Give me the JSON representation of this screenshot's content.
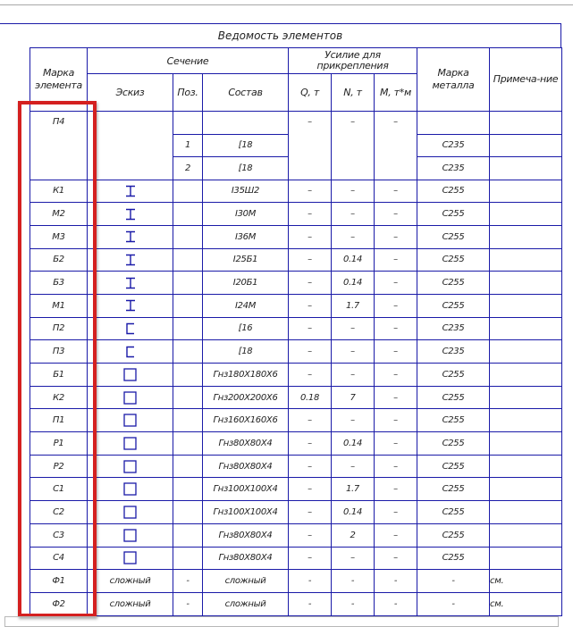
{
  "title": "Ведомость элементов",
  "headers": {
    "mark": "Марка элемента",
    "section": "Сечение",
    "sketch": "Эскиз",
    "pos": "Поз.",
    "composition": "Состав",
    "force": "Усилие для прикрепления",
    "q": "Q, т",
    "n": "N, т",
    "m": "М, т*м",
    "steel": "Марка металла",
    "note": "Примеча-ние"
  },
  "group": {
    "mark": "П4",
    "q": "–",
    "n": "–",
    "m": "–",
    "rows": [
      {
        "pos": "",
        "composition": "",
        "steel": ""
      },
      {
        "pos": "1",
        "composition": "[18",
        "steel": "С235"
      },
      {
        "pos": "2",
        "composition": "[18",
        "steel": "С235"
      }
    ]
  },
  "rows": [
    {
      "mark": "К1",
      "icon": "i-beam",
      "composition": "I35Ш2",
      "q": "–",
      "n": "–",
      "m": "–",
      "steel": "С255",
      "note": ""
    },
    {
      "mark": "М2",
      "icon": "i-beam",
      "composition": "I30М",
      "q": "–",
      "n": "–",
      "m": "–",
      "steel": "С255",
      "note": ""
    },
    {
      "mark": "М3",
      "icon": "i-beam",
      "composition": "I36М",
      "q": "–",
      "n": "–",
      "m": "–",
      "steel": "С255",
      "note": ""
    },
    {
      "mark": "Б2",
      "icon": "i-beam",
      "composition": "I25Б1",
      "q": "–",
      "n": "0.14",
      "m": "–",
      "steel": "С255",
      "note": ""
    },
    {
      "mark": "Б3",
      "icon": "i-beam",
      "composition": "I20Б1",
      "q": "–",
      "n": "0.14",
      "m": "–",
      "steel": "С255",
      "note": ""
    },
    {
      "mark": "М1",
      "icon": "i-beam",
      "composition": "I24М",
      "q": "–",
      "n": "1.7",
      "m": "–",
      "steel": "С255",
      "note": ""
    },
    {
      "mark": "П2",
      "icon": "channel",
      "composition": "[16",
      "q": "–",
      "n": "–",
      "m": "–",
      "steel": "С235",
      "note": ""
    },
    {
      "mark": "П3",
      "icon": "channel",
      "composition": "[18",
      "q": "–",
      "n": "–",
      "m": "–",
      "steel": "С235",
      "note": ""
    },
    {
      "mark": "Б1",
      "icon": "square-tube",
      "composition": "Гнз180Х180Х6",
      "q": "–",
      "n": "–",
      "m": "–",
      "steel": "С255",
      "note": ""
    },
    {
      "mark": "К2",
      "icon": "square-tube",
      "composition": "Гнз200Х200Х6",
      "q": "0.18",
      "n": "7",
      "m": "–",
      "steel": "С255",
      "note": ""
    },
    {
      "mark": "П1",
      "icon": "square-tube",
      "composition": "Гнз160Х160Х6",
      "q": "–",
      "n": "–",
      "m": "–",
      "steel": "С255",
      "note": ""
    },
    {
      "mark": "Р1",
      "icon": "square-tube",
      "composition": "Гнз80Х80Х4",
      "q": "–",
      "n": "0.14",
      "m": "–",
      "steel": "С255",
      "note": ""
    },
    {
      "mark": "Р2",
      "icon": "square-tube",
      "composition": "Гнз80Х80Х4",
      "q": "–",
      "n": "–",
      "m": "–",
      "steel": "С255",
      "note": ""
    },
    {
      "mark": "С1",
      "icon": "square-tube",
      "composition": "Гнз100Х100Х4",
      "q": "–",
      "n": "1.7",
      "m": "–",
      "steel": "С255",
      "note": ""
    },
    {
      "mark": "С2",
      "icon": "square-tube",
      "composition": "Гнз100Х100Х4",
      "q": "–",
      "n": "0.14",
      "m": "–",
      "steel": "С255",
      "note": ""
    },
    {
      "mark": "С3",
      "icon": "square-tube",
      "composition": "Гнз80Х80Х4",
      "q": "–",
      "n": "2",
      "m": "–",
      "steel": "С255",
      "note": ""
    },
    {
      "mark": "С4",
      "icon": "square-tube",
      "composition": "Гнз80Х80Х4",
      "q": "–",
      "n": "–",
      "m": "–",
      "steel": "С255",
      "note": ""
    },
    {
      "mark": "Ф1",
      "sketch": "сложный",
      "pos": "-",
      "composition": "сложный",
      "q": "-",
      "n": "-",
      "m": "-",
      "steel": "-",
      "note": "см."
    },
    {
      "mark": "Ф2",
      "sketch": "сложный",
      "pos": "-",
      "composition": "сложный",
      "q": "-",
      "n": "-",
      "m": "-",
      "steel": "-",
      "note": "см."
    }
  ],
  "colors": {
    "grid": "#1a1aa8",
    "highlight": "#d42020"
  }
}
